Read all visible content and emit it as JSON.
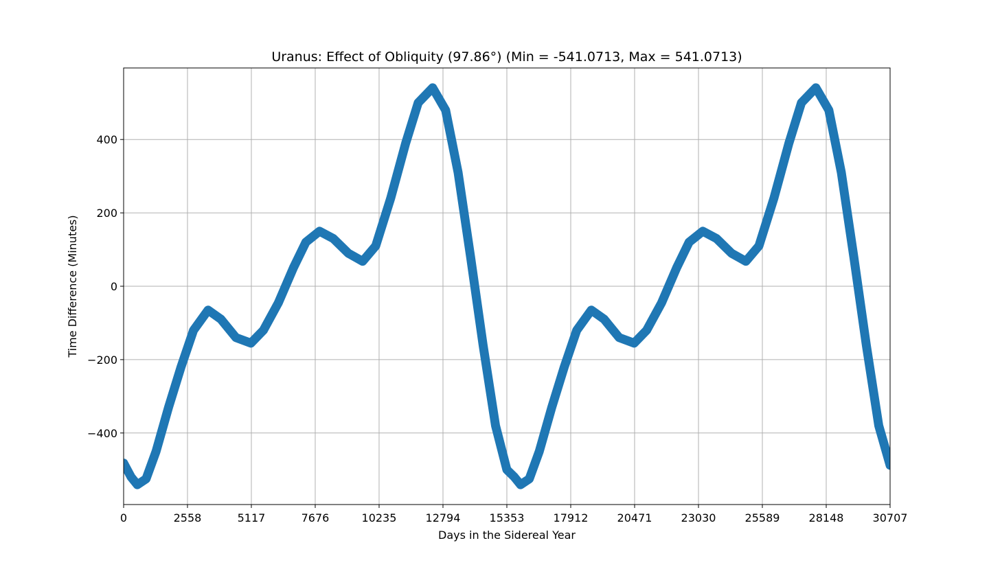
{
  "chart_data": {
    "type": "line",
    "title": "Uranus: Effect of Obliquity (97.86°) (Min = -541.0713, Max = 541.0713)",
    "x_label": "Days in the Sidereal Year",
    "y_label": "Time Difference (Minutes)",
    "x": [
      0,
      300,
      550,
      900,
      1300,
      1800,
      2300,
      2800,
      3385,
      3900,
      4500,
      5100,
      5600,
      6200,
      6800,
      7300,
      7850,
      8400,
      9000,
      9576,
      10100,
      10700,
      11300,
      11800,
      12380,
      12900,
      13400,
      13900,
      14400,
      14900,
      15353,
      15653,
      15903,
      16253,
      16653,
      17153,
      17653,
      18153,
      18738,
      19253,
      19853,
      20453,
      20953,
      21553,
      22153,
      22653,
      23203,
      23753,
      24353,
      24929,
      25453,
      26053,
      26653,
      27153,
      27733,
      28253,
      28753,
      29253,
      29753,
      30253,
      30707
    ],
    "series": [
      {
        "color": "#1f77b4",
        "values": [
          -482,
          -520,
          -541,
          -525,
          -450,
          -330,
          -220,
          -120,
          -65,
          -90,
          -140,
          -155,
          -120,
          -45,
          50,
          120,
          150,
          130,
          90,
          68,
          110,
          240,
          390,
          500,
          541,
          480,
          310,
          80,
          -160,
          -380,
          -500,
          -520,
          -541,
          -525,
          -450,
          -330,
          -220,
          -120,
          -65,
          -90,
          -140,
          -155,
          -120,
          -45,
          50,
          120,
          150,
          130,
          90,
          68,
          110,
          240,
          390,
          500,
          541,
          480,
          310,
          80,
          -160,
          -380,
          -488
        ]
      }
    ],
    "xlim": [
      0,
      30707
    ],
    "ylim": [
      -595,
      595
    ],
    "xticks": [
      0,
      2558,
      5117,
      7676,
      10235,
      12794,
      15353,
      17912,
      20471,
      23030,
      25589,
      28148,
      30707
    ],
    "yticks": [
      {
        "value": -400,
        "label": "−400"
      },
      {
        "value": -200,
        "label": "−200"
      },
      0,
      200,
      400
    ],
    "grid": true
  }
}
